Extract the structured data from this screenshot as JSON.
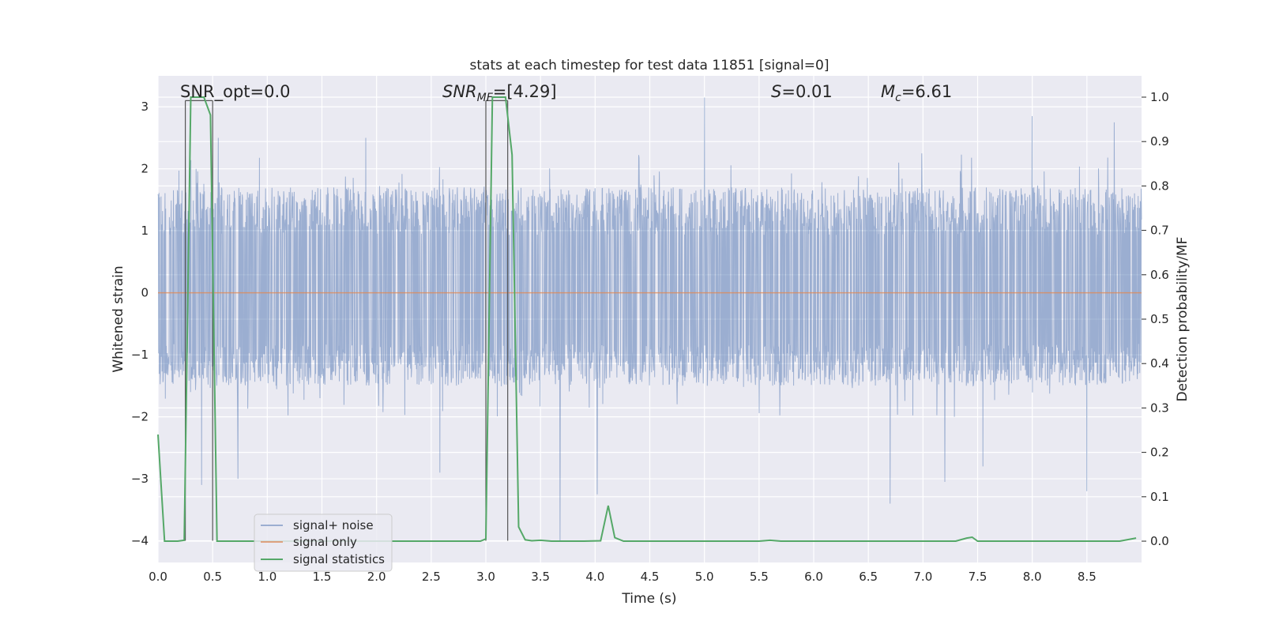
{
  "chart_data": {
    "type": "line",
    "title": "stats at each timestep for test data 11851 [signal=0]",
    "xlabel": "Time (s)",
    "ylabel": "Whitened strain",
    "y2label": "Detection probability/MF",
    "xlim": [
      0.0,
      9.0
    ],
    "ylim": [
      -4.35,
      3.5
    ],
    "y2lim": [
      -0.048,
      1.048
    ],
    "xticks": [
      0.0,
      0.5,
      1.0,
      1.5,
      2.0,
      2.5,
      3.0,
      3.5,
      4.0,
      4.5,
      5.0,
      5.5,
      6.0,
      6.5,
      7.0,
      7.5,
      8.0,
      8.5
    ],
    "xtick_labels": [
      "0.0",
      "0.5",
      "1.0",
      "1.5",
      "2.0",
      "2.5",
      "3.0",
      "3.5",
      "4.0",
      "4.5",
      "5.0",
      "5.5",
      "6.0",
      "6.5",
      "7.0",
      "7.5",
      "8.0",
      "8.5"
    ],
    "yticks": [
      -4,
      -3,
      -2,
      -1,
      0,
      1,
      2,
      3
    ],
    "ytick_labels": [
      "−4",
      "−3",
      "−2",
      "−1",
      "0",
      "1",
      "2",
      "3"
    ],
    "y2ticks": [
      0.0,
      0.1,
      0.2,
      0.3,
      0.4,
      0.5,
      0.6,
      0.7,
      0.8,
      0.9,
      1.0
    ],
    "y2tick_labels": [
      "0.0",
      "0.1",
      "0.2",
      "0.3",
      "0.4",
      "0.5",
      "0.6",
      "0.7",
      "0.8",
      "0.9",
      "1.0"
    ],
    "grid": true,
    "legend_position": "lower-left",
    "annotations": {
      "snr_opt": "SNR_opt=0.0",
      "snr_mf_sym": "SNR",
      "snr_mf_sub": "MF",
      "snr_mf_val": "=[4.29]",
      "s_sym": "S",
      "s_val": "=0.01",
      "mc_sym": "M",
      "mc_sub": "c",
      "mc_val": "=6.61"
    },
    "series": [
      {
        "name": "signal+ noise",
        "color": "#4c72b0",
        "description": "whitened strain noise, approx band -1.5 to 1.7 with spikes to about 3.1 and -3.4",
        "envelope_typical": [
          -1.5,
          1.7
        ],
        "spikes": [
          {
            "x": 0.25,
            "y": 2.2
          },
          {
            "x": 0.4,
            "y": -3.1
          },
          {
            "x": 0.55,
            "y": 2.5
          },
          {
            "x": 0.73,
            "y": -3.0
          },
          {
            "x": 1.9,
            "y": 2.5
          },
          {
            "x": 2.58,
            "y": -2.9
          },
          {
            "x": 3.68,
            "y": -4.0
          },
          {
            "x": 4.02,
            "y": -3.25
          },
          {
            "x": 5.0,
            "y": 3.15
          },
          {
            "x": 6.7,
            "y": -3.4
          },
          {
            "x": 7.2,
            "y": -3.05
          },
          {
            "x": 8.0,
            "y": 2.85
          },
          {
            "x": 8.5,
            "y": -3.2
          },
          {
            "x": 8.75,
            "y": 2.75
          },
          {
            "x": 7.55,
            "y": -2.8
          }
        ]
      },
      {
        "name": "signal only",
        "color": "#dd8452",
        "x": [
          0.0,
          9.0
        ],
        "y": [
          0.0,
          0.0
        ]
      },
      {
        "name": "signal statistics",
        "color": "#55a868",
        "axis": "right",
        "x": [
          0.0,
          0.06,
          0.12,
          0.18,
          0.24,
          0.3,
          0.36,
          0.42,
          0.48,
          0.54,
          0.6,
          0.66,
          0.72,
          2.95,
          3.0,
          3.06,
          3.12,
          3.18,
          3.24,
          3.3,
          3.36,
          3.42,
          3.5,
          3.6,
          3.7,
          3.9,
          4.05,
          4.12,
          4.18,
          4.26,
          4.4,
          5.5,
          5.6,
          5.7,
          7.3,
          7.4,
          7.45,
          7.5,
          7.6,
          8.5,
          8.8,
          8.95
        ],
        "y": [
          0.24,
          0.0,
          0.0,
          0.0,
          0.002,
          1.0,
          1.0,
          1.0,
          0.96,
          0.0,
          0.0,
          0.0,
          0.0,
          0.0,
          0.005,
          1.0,
          1.0,
          1.0,
          0.87,
          0.032,
          0.003,
          0.001,
          0.002,
          0.0,
          0.0,
          0.0,
          0.001,
          0.08,
          0.008,
          0.0,
          0.0,
          0.0,
          0.002,
          0.0,
          0.0,
          0.007,
          0.009,
          0.0,
          0.0,
          0.0,
          0.0,
          0.007
        ]
      }
    ],
    "detection_windows": [
      [
        0.25,
        0.5
      ],
      [
        3.0,
        3.2
      ]
    ]
  }
}
